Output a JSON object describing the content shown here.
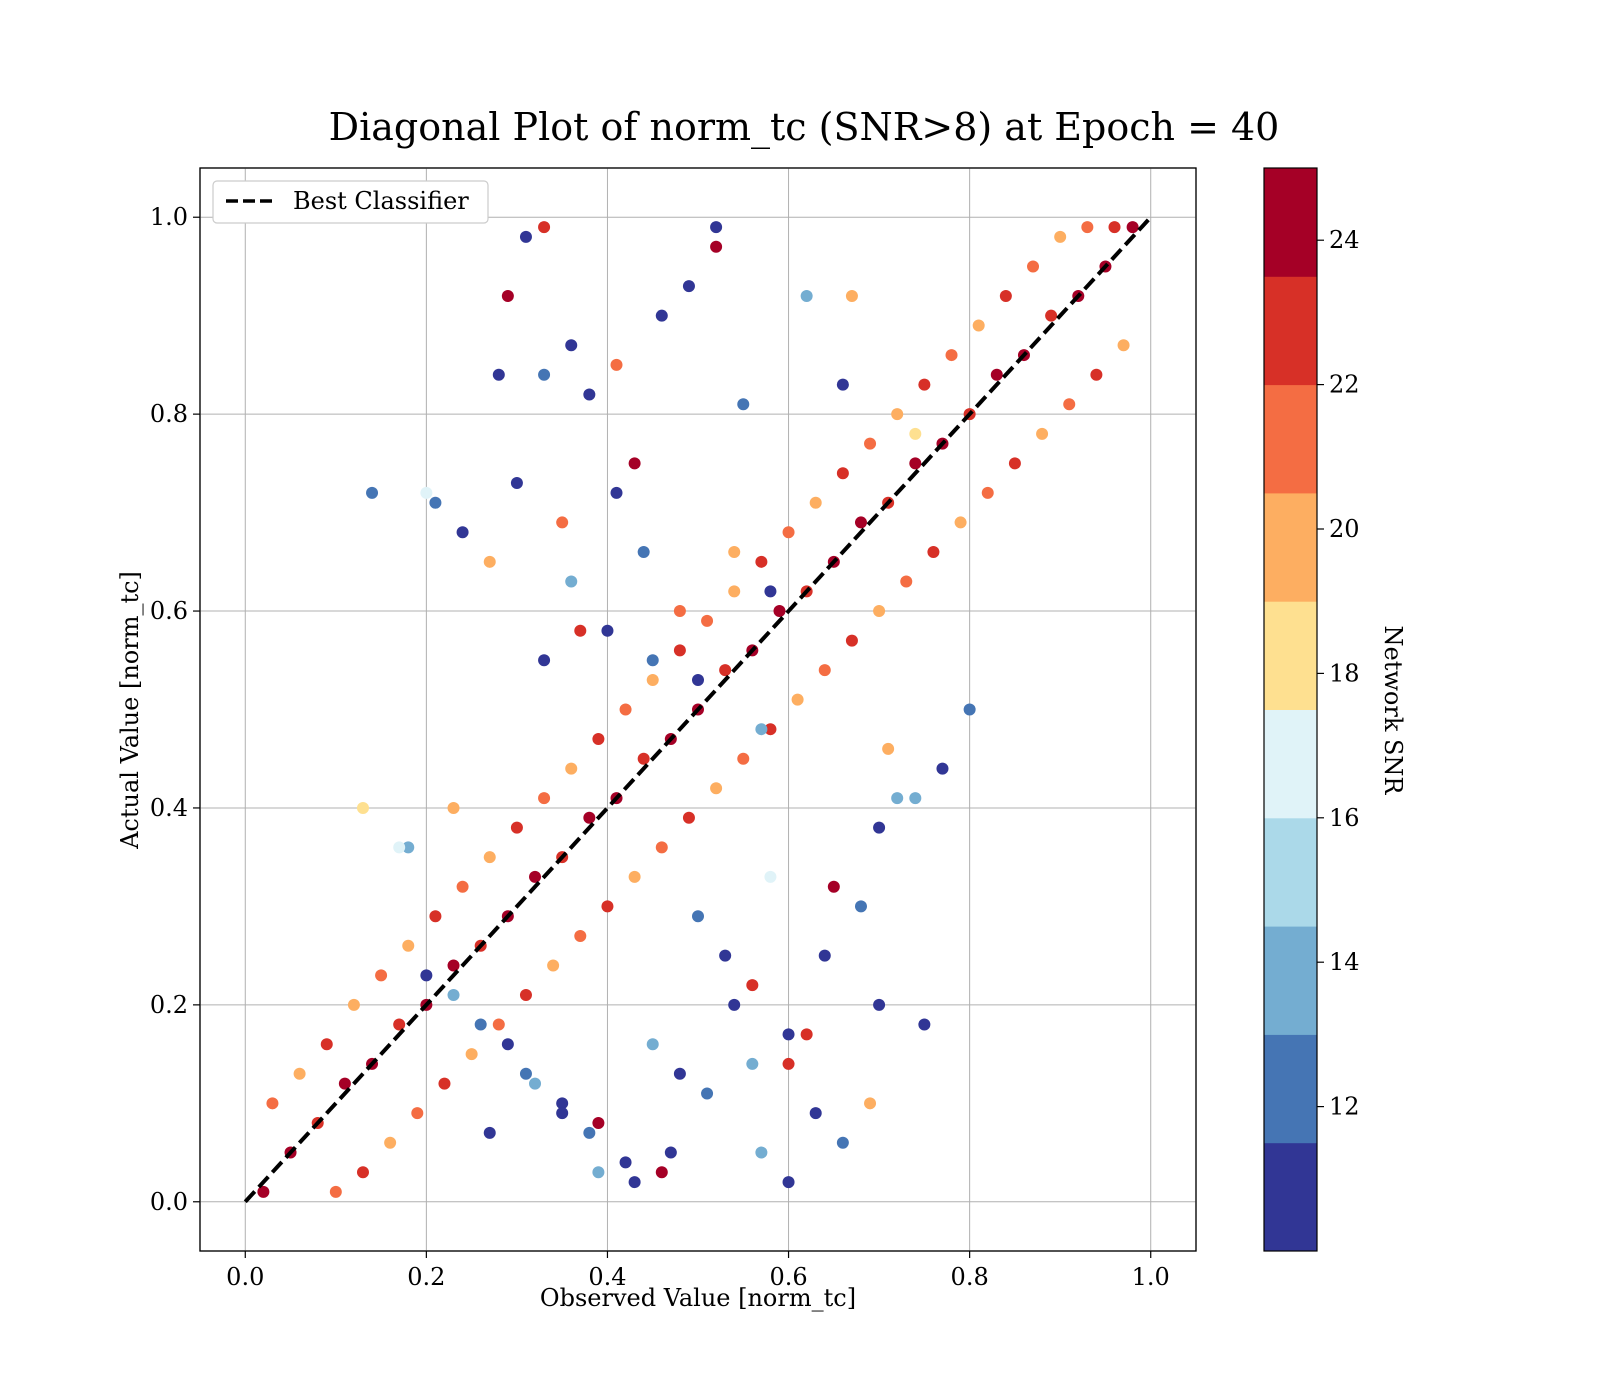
{
  "chart_data": {
    "type": "scatter",
    "title": "Diagonal Plot of norm_tc (SNR>8) at Epoch = 40",
    "xlabel": "Observed Value [norm_tc]",
    "ylabel": "Actual Value [norm_tc]",
    "xlim": [
      -0.05,
      1.05
    ],
    "ylim": [
      -0.05,
      1.05
    ],
    "xticks": [
      "0.0",
      "0.2",
      "0.4",
      "0.6",
      "0.8",
      "1.0"
    ],
    "yticks": [
      "0.0",
      "0.2",
      "0.4",
      "0.6",
      "0.8",
      "1.0"
    ],
    "grid": true,
    "legend": {
      "position": "top-left",
      "entries": [
        "Best Classifier"
      ]
    },
    "reference_line": {
      "name": "Best Classifier",
      "x": [
        0.0,
        1.0
      ],
      "y": [
        0.0,
        1.0
      ],
      "style": "dashed",
      "color": "#000000"
    },
    "colorbar": {
      "label": "Network SNR",
      "min": 10,
      "max": 25,
      "ticks": [
        "12",
        "14",
        "16",
        "18",
        "20",
        "22",
        "24"
      ],
      "tick_values": [
        12,
        14,
        16,
        18,
        20,
        22,
        24
      ],
      "colors": [
        "#313695",
        "#4575b4",
        "#74add1",
        "#abd9e9",
        "#e0f3f8",
        "#fee090",
        "#fdae61",
        "#f46d43",
        "#d73027",
        "#a50026"
      ]
    },
    "series": [
      {
        "x": [
          0.02,
          0.05,
          0.08,
          0.11,
          0.14,
          0.17,
          0.2,
          0.23,
          0.26,
          0.29,
          0.32,
          0.35,
          0.38,
          0.41,
          0.44,
          0.47,
          0.5,
          0.53,
          0.56,
          0.59,
          0.62,
          0.65,
          0.68,
          0.71,
          0.74,
          0.77,
          0.8,
          0.83,
          0.86,
          0.89,
          0.92,
          0.95,
          0.98
        ],
        "y": [
          0.01,
          0.05,
          0.08,
          0.12,
          0.14,
          0.18,
          0.2,
          0.24,
          0.26,
          0.29,
          0.33,
          0.35,
          0.39,
          0.41,
          0.45,
          0.47,
          0.5,
          0.54,
          0.56,
          0.6,
          0.62,
          0.65,
          0.69,
          0.71,
          0.75,
          0.77,
          0.8,
          0.84,
          0.86,
          0.9,
          0.92,
          0.95,
          0.99
        ],
        "snr": [
          24,
          24,
          23,
          24,
          24,
          23,
          24,
          24,
          22,
          24,
          24,
          23,
          24,
          24,
          22,
          24,
          24,
          23,
          24,
          24,
          22,
          24,
          24,
          23,
          24,
          24,
          22,
          24,
          24,
          23,
          24,
          24,
          24
        ]
      },
      {
        "x": [
          0.03,
          0.06,
          0.09,
          0.12,
          0.15,
          0.18,
          0.21,
          0.24,
          0.27,
          0.3,
          0.33,
          0.36,
          0.39,
          0.42,
          0.45,
          0.48,
          0.51,
          0.54,
          0.57,
          0.6,
          0.63,
          0.66,
          0.69,
          0.72,
          0.75,
          0.78,
          0.81,
          0.84,
          0.87,
          0.9,
          0.93,
          0.96
        ],
        "y": [
          0.1,
          0.13,
          0.16,
          0.2,
          0.23,
          0.26,
          0.29,
          0.32,
          0.35,
          0.38,
          0.41,
          0.44,
          0.47,
          0.5,
          0.53,
          0.56,
          0.59,
          0.62,
          0.65,
          0.68,
          0.71,
          0.74,
          0.77,
          0.8,
          0.83,
          0.86,
          0.89,
          0.92,
          0.95,
          0.98,
          0.99,
          0.99
        ],
        "snr": [
          21,
          20,
          22,
          19,
          21,
          20,
          22,
          21,
          19,
          22,
          21,
          20,
          22,
          21,
          19,
          22,
          21,
          20,
          22,
          21,
          19,
          22,
          21,
          20,
          22,
          21,
          19,
          22,
          21,
          20,
          21,
          22
        ]
      },
      {
        "x": [
          0.1,
          0.13,
          0.16,
          0.19,
          0.22,
          0.25,
          0.28,
          0.31,
          0.34,
          0.37,
          0.4,
          0.43,
          0.46,
          0.49,
          0.52,
          0.55,
          0.58,
          0.61,
          0.64,
          0.67,
          0.7,
          0.73,
          0.76,
          0.79,
          0.82,
          0.85,
          0.88,
          0.91,
          0.94,
          0.97
        ],
        "y": [
          0.01,
          0.03,
          0.06,
          0.09,
          0.12,
          0.15,
          0.18,
          0.21,
          0.24,
          0.27,
          0.3,
          0.33,
          0.36,
          0.39,
          0.42,
          0.45,
          0.48,
          0.51,
          0.54,
          0.57,
          0.6,
          0.63,
          0.66,
          0.69,
          0.72,
          0.75,
          0.78,
          0.81,
          0.84,
          0.87
        ],
        "snr": [
          21,
          22,
          19,
          21,
          22,
          20,
          21,
          22,
          19,
          21,
          22,
          20,
          21,
          22,
          19,
          21,
          22,
          20,
          21,
          22,
          19,
          21,
          22,
          20,
          21,
          22,
          19,
          21,
          22,
          20
        ]
      },
      {
        "x": [
          0.28,
          0.3,
          0.31,
          0.33,
          0.36,
          0.38,
          0.41,
          0.44,
          0.46,
          0.49,
          0.52,
          0.55,
          0.58,
          0.62,
          0.66,
          0.7,
          0.72,
          0.75,
          0.68,
          0.64,
          0.6,
          0.56,
          0.53,
          0.5,
          0.47,
          0.43,
          0.39,
          0.35,
          0.31,
          0.27,
          0.24,
          0.21,
          0.18,
          0.14,
          0.2,
          0.23,
          0.26,
          0.29,
          0.32,
          0.35,
          0.38,
          0.42,
          0.45,
          0.48,
          0.51,
          0.54,
          0.57,
          0.6,
          0.63,
          0.66,
          0.7,
          0.74,
          0.77,
          0.8,
          0.57,
          0.5,
          0.45,
          0.4,
          0.36,
          0.33
        ],
        "y": [
          0.84,
          0.73,
          0.98,
          0.84,
          0.87,
          0.82,
          0.72,
          0.66,
          0.9,
          0.93,
          0.99,
          0.81,
          0.62,
          0.92,
          0.83,
          0.2,
          0.41,
          0.18,
          0.3,
          0.25,
          0.17,
          0.14,
          0.25,
          0.29,
          0.05,
          0.02,
          0.03,
          0.1,
          0.13,
          0.07,
          0.68,
          0.71,
          0.36,
          0.72,
          0.23,
          0.21,
          0.18,
          0.16,
          0.12,
          0.09,
          0.07,
          0.04,
          0.16,
          0.13,
          0.11,
          0.2,
          0.05,
          0.02,
          0.09,
          0.06,
          0.38,
          0.41,
          0.44,
          0.5,
          0.48,
          0.53,
          0.55,
          0.58,
          0.63,
          0.55
        ],
        "snr": [
          11,
          11,
          11,
          12,
          11,
          11,
          11,
          12,
          11,
          11,
          11,
          12,
          11,
          13,
          11,
          11,
          14,
          11,
          12,
          11,
          11,
          13,
          11,
          12,
          11,
          11,
          14,
          11,
          12,
          11,
          11,
          12,
          13,
          12,
          11,
          14,
          12,
          11,
          13,
          11,
          12,
          11,
          13,
          11,
          12,
          11,
          14,
          11,
          11,
          12,
          11,
          13,
          11,
          12,
          14,
          11,
          12,
          11,
          13,
          11
        ]
      },
      {
        "x": [
          0.33,
          0.29,
          0.37,
          0.6,
          0.56,
          0.65,
          0.69,
          0.71,
          0.52,
          0.48,
          0.43,
          0.39,
          0.27,
          0.23,
          0.2,
          0.13,
          0.17,
          0.62,
          0.58,
          0.54,
          0.67,
          0.74,
          0.46,
          0.41,
          0.35
        ],
        "y": [
          0.99,
          0.92,
          0.58,
          0.14,
          0.22,
          0.32,
          0.1,
          0.46,
          0.97,
          0.6,
          0.75,
          0.08,
          0.65,
          0.4,
          0.72,
          0.4,
          0.36,
          0.17,
          0.33,
          0.66,
          0.92,
          0.78,
          0.03,
          0.85,
          0.69
        ],
        "snr": [
          23,
          24,
          23,
          23,
          22,
          24,
          20,
          20,
          24,
          21,
          24,
          24,
          20,
          19,
          16,
          18,
          16,
          23,
          17,
          19,
          20,
          18,
          24,
          21,
          21
        ]
      }
    ]
  }
}
